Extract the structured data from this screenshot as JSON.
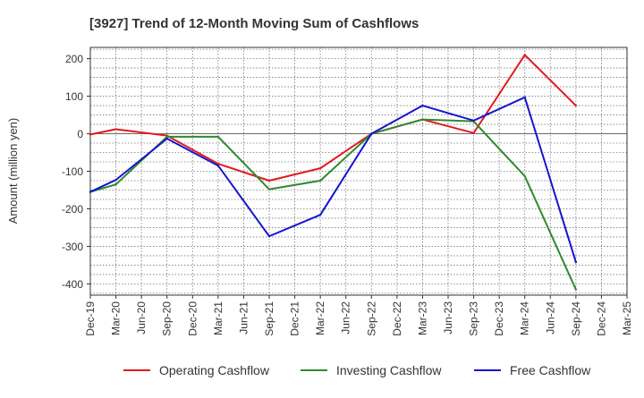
{
  "chart_data": {
    "type": "line",
    "title": "[3927]  Trend of 12-Month Moving Sum of Cashflows",
    "xlabel": "",
    "ylabel": "Amount (million yen)",
    "ylim": [
      -430,
      230
    ],
    "yticks": [
      200,
      100,
      0,
      -100,
      -200,
      -300,
      -400
    ],
    "ytick_labels": [
      "200",
      "100",
      "0",
      "-100",
      "-200",
      "-300",
      "-400"
    ],
    "categories": [
      "Dec-19",
      "Mar-20",
      "Jun-20",
      "Sep-20",
      "Dec-20",
      "Mar-21",
      "Jun-21",
      "Sep-21",
      "Dec-21",
      "Mar-22",
      "Jun-22",
      "Sep-22",
      "Dec-22",
      "Mar-23",
      "Jun-23",
      "Sep-23",
      "Dec-23",
      "Mar-24",
      "Jun-24",
      "Sep-24",
      "Dec-24",
      "Mar-25"
    ],
    "grid": true,
    "legend_position": "bottom",
    "series": [
      {
        "name": "Operating Cashflow",
        "color": "#e31a1c",
        "values": [
          -2,
          12,
          null,
          -5,
          null,
          -80,
          null,
          -125,
          null,
          -92,
          null,
          0,
          null,
          38,
          null,
          2,
          null,
          210,
          null,
          75,
          null,
          null
        ]
      },
      {
        "name": "Investing Cashflow",
        "color": "#2e8b2e",
        "values": [
          -155,
          -135,
          null,
          -8,
          null,
          -8,
          null,
          -148,
          null,
          -125,
          null,
          0,
          null,
          38,
          null,
          33,
          null,
          -113,
          null,
          -415,
          null,
          null
        ]
      },
      {
        "name": "Free Cashflow",
        "color": "#1515d0",
        "values": [
          -155,
          -123,
          null,
          -13,
          null,
          -85,
          null,
          -273,
          null,
          -216,
          null,
          0,
          null,
          75,
          null,
          35,
          null,
          97,
          null,
          -342,
          null,
          null
        ]
      }
    ]
  }
}
